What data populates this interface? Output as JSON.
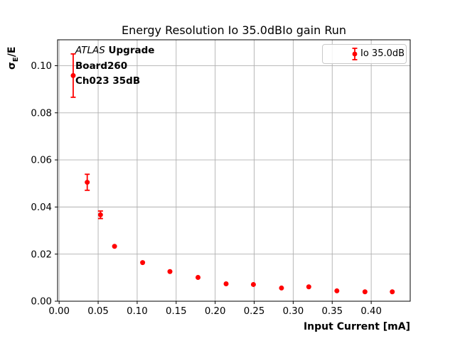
{
  "chart": {
    "title": "Energy Resolution Io 35.0dBIo gain Run",
    "xlabel": "Input Current [mA]",
    "ylabel": {
      "sigma": "σ",
      "sub": "E",
      "rest": "/E"
    },
    "annotation": {
      "line1_italic": "ATLAS",
      "line1_bold": " Upgrade",
      "line2": "Board260",
      "line3": "Ch023 35dB"
    },
    "legend": {
      "label": "Io 35.0dB"
    }
  },
  "chart_data": {
    "type": "scatter",
    "title": "Energy Resolution Io 35.0dBIo gain Run",
    "xlabel": "Input Current [mA]",
    "ylabel": "σE/E",
    "grid": true,
    "legend_position": "upper right",
    "xlim": [
      -0.002,
      0.45
    ],
    "ylim": [
      0,
      0.111
    ],
    "xticks": {
      "values": [
        0.0,
        0.05,
        0.1,
        0.15,
        0.2,
        0.25,
        0.3,
        0.35,
        0.4
      ],
      "labels": [
        "0.00",
        "0.05",
        "0.10",
        "0.15",
        "0.20",
        "0.25",
        "0.30",
        "0.35",
        "0.40"
      ]
    },
    "yticks": {
      "values": [
        0.0,
        0.02,
        0.04,
        0.06,
        0.08,
        0.1
      ],
      "labels": [
        "0.00",
        "0.02",
        "0.04",
        "0.06",
        "0.08",
        "0.10"
      ]
    },
    "series": [
      {
        "name": "Io 35.0dB",
        "x": [
          0.018,
          0.036,
          0.053,
          0.071,
          0.107,
          0.142,
          0.178,
          0.214,
          0.249,
          0.285,
          0.32,
          0.356,
          0.392,
          0.427
        ],
        "y": [
          0.0958,
          0.0505,
          0.0367,
          0.0233,
          0.0164,
          0.0126,
          0.0101,
          0.0074,
          0.0071,
          0.0056,
          0.0061,
          0.0044,
          0.004,
          0.004
        ],
        "yerr": [
          0.0092,
          0.0034,
          0.0016,
          0.0006,
          0.0004,
          0.0003,
          0.0003,
          0.0002,
          0.0002,
          0.0002,
          0.0002,
          0.0001,
          0.0001,
          0.0001
        ]
      }
    ],
    "colors": {
      "series": "#ff0000",
      "grid": "#b0b0b0",
      "spine": "#000000",
      "tick_label": "#000000",
      "legend_border": "#c9c9c9"
    }
  }
}
